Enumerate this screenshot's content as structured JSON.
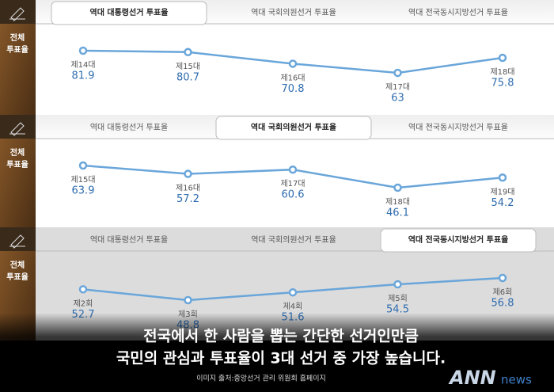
{
  "chart_data": [
    {
      "type": "line",
      "tabs": [
        "역대 대통령선거 투표율",
        "역대 국회의원선거 투표율",
        "역대 전국동시지방선거 투표율"
      ],
      "active_tab": 0,
      "side_label": [
        "전체",
        "투표율"
      ],
      "categories": [
        "제14대",
        "제15대",
        "제16대",
        "제17대",
        "제18대"
      ],
      "values": [
        81.9,
        80.7,
        70.8,
        63,
        75.8
      ],
      "color": "#6aa6da"
    },
    {
      "type": "line",
      "tabs": [
        "역대 대통령선거 투표율",
        "역대 국회의원선거 투표율",
        "역대 전국동시지방선거 투표율"
      ],
      "active_tab": 1,
      "side_label": [
        "전체",
        "투표율"
      ],
      "categories": [
        "제15대",
        "제16대",
        "제17대",
        "제18대",
        "제19대"
      ],
      "values": [
        63.9,
        57.2,
        60.6,
        46.1,
        54.2
      ],
      "color": "#6aa6da"
    },
    {
      "type": "line",
      "tabs": [
        "역대 대통령선거 투표율",
        "역대 국회의원선거 투표율",
        "역대 전국동시지방선거 투표율"
      ],
      "active_tab": 2,
      "side_label": [
        "전체",
        "투표율"
      ],
      "categories": [
        "제2회",
        "제3회",
        "제4회",
        "제5회",
        "제6회"
      ],
      "values": [
        52.7,
        48.8,
        51.6,
        54.5,
        56.8
      ],
      "color": "#6aa6da"
    }
  ],
  "caption": [
    "전국에서 한 사람을 뽑는 간단한 선거인만큼",
    "국민의 관심과 투표율이 3대 선거 중 가장 높습니다."
  ],
  "source": "이미지 출처:중앙선거 관리 위원회 홈페이지",
  "logo": {
    "main": "ANN",
    "sub": "news"
  }
}
